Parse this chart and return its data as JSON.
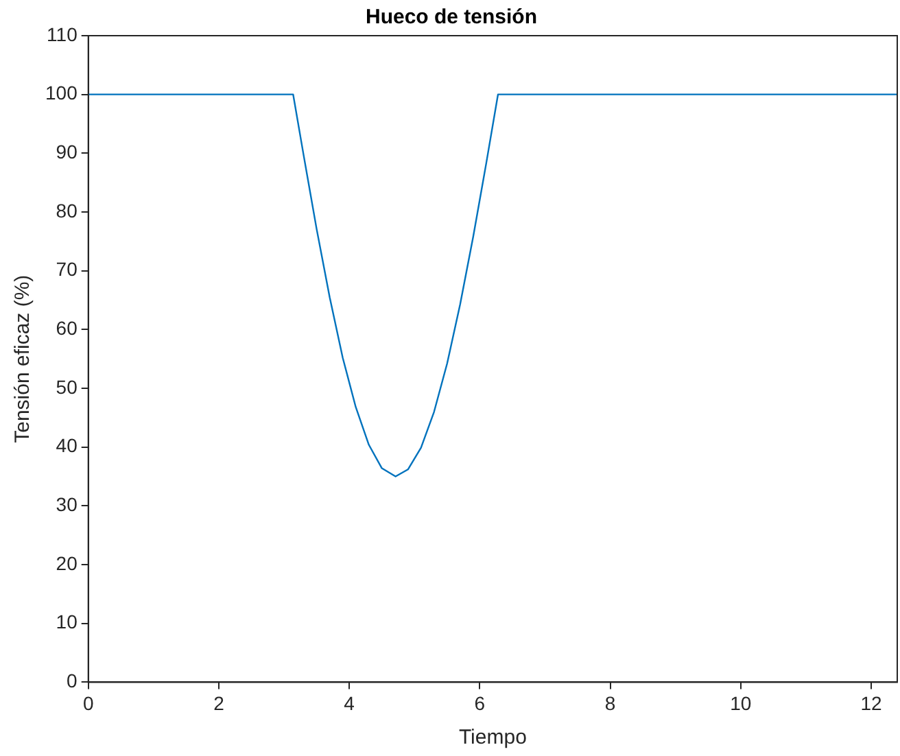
{
  "chart_data": {
    "type": "line",
    "title": "Hueco de tensión",
    "xlabel": "Tiempo",
    "ylabel": "Tensión eficaz (%)",
    "x": [
      0,
      3.14,
      3.3,
      3.5,
      3.7,
      3.9,
      4.1,
      4.3,
      4.5,
      4.71,
      4.9,
      5.1,
      5.3,
      5.5,
      5.7,
      5.9,
      6.1,
      6.28,
      12.4
    ],
    "series": [
      {
        "color": "#0072bd",
        "values": [
          100,
          100,
          89.7,
          77.1,
          65.5,
          55.2,
          46.8,
          40.4,
          36.4,
          35,
          36.2,
          39.9,
          46,
          54.2,
          64.3,
          75.8,
          88.3,
          100,
          100
        ]
      }
    ],
    "xlim": [
      0,
      12.4
    ],
    "xticks": [
      0,
      2,
      4,
      6,
      8,
      10,
      12
    ],
    "ylim": [
      0,
      110
    ],
    "yticks": [
      0,
      10,
      20,
      30,
      40,
      50,
      60,
      70,
      80,
      90,
      100,
      110
    ],
    "grid": false,
    "legend": false,
    "marker": "none",
    "line_style": "solid"
  }
}
